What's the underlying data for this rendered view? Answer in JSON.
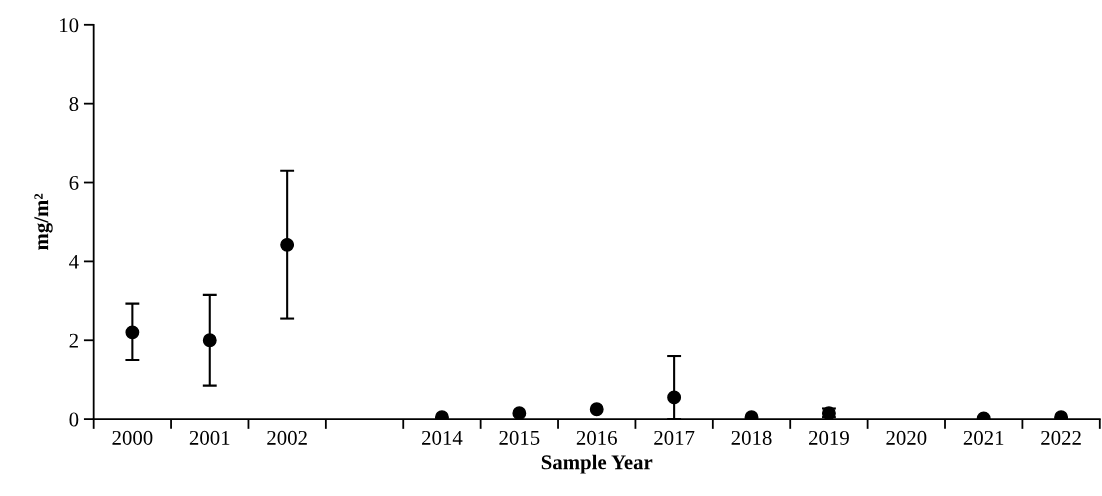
{
  "chart_data": {
    "type": "scatter",
    "xlabel": "Sample Year",
    "ylabel": "mg/m²",
    "categories": [
      "2000",
      "2001",
      "2002",
      null,
      "2014",
      "2015",
      "2016",
      "2017",
      "2018",
      "2019",
      "2020",
      "2021",
      "2022"
    ],
    "series": [
      {
        "color": "#000000",
        "values": [
          2.2,
          2.0,
          4.42,
          null,
          0.05,
          0.15,
          0.25,
          0.55,
          0.05,
          0.15,
          null,
          0.02,
          0.05
        ],
        "errors": [
          [
            1.5,
            2.93
          ],
          [
            0.85,
            3.15
          ],
          [
            2.55,
            6.3
          ],
          null,
          null,
          null,
          null,
          [
            0.0,
            1.6
          ],
          null,
          [
            0.05,
            0.27
          ],
          null,
          null,
          null
        ]
      }
    ],
    "ylim": [
      0,
      10
    ],
    "yticks": [
      0,
      2,
      4,
      6,
      8,
      10
    ],
    "grid": false,
    "legend": false,
    "marker": "circle"
  }
}
